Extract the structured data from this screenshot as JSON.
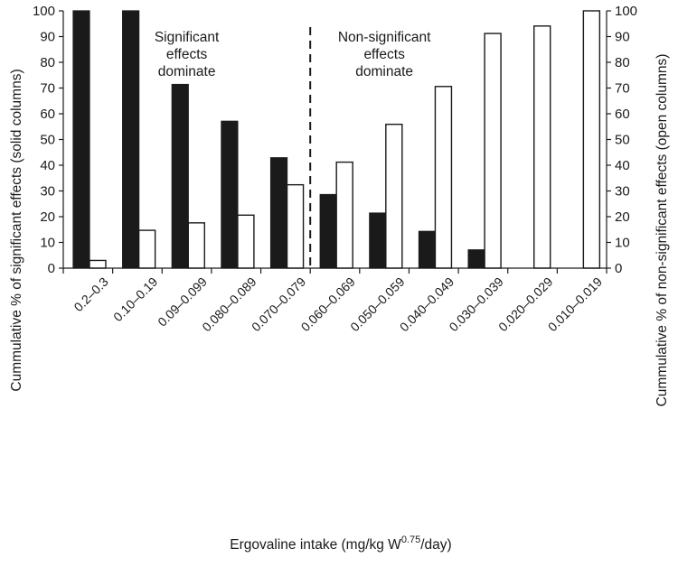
{
  "chart_data": {
    "type": "bar",
    "categories": [
      "0.2–0.3",
      "0.10–0.19",
      "0.09–0.099",
      "0.080–0.089",
      "0.070–0.079",
      "0.060–0.069",
      "0.050–0.059",
      "0.040–0.049",
      "0.030–0.039",
      "0.020–0.029",
      "0.010–0.019"
    ],
    "series": [
      {
        "key": "significant",
        "fill": "#1a1a1a",
        "axis": "left",
        "values": [
          100,
          100,
          71.4,
          57.1,
          42.9,
          28.6,
          21.4,
          14.3,
          7.1,
          0,
          0
        ]
      },
      {
        "key": "non_significant",
        "fill": "#ffffff",
        "axis": "right",
        "values": [
          3,
          14.7,
          17.6,
          20.6,
          32.4,
          41.2,
          55.9,
          70.6,
          91.2,
          94.1,
          100
        ]
      }
    ],
    "ylim": [
      0,
      100
    ],
    "yticks": [
      0,
      10,
      20,
      30,
      40,
      50,
      60,
      70,
      80,
      90,
      100
    ],
    "xlabel": {
      "main": "Ergovaline intake (mg/kg W",
      "sup": "0.75",
      "tail": "/day)"
    },
    "ylabel_left": "Cummulative % of significant  effects (solid columns)",
    "ylabel_right": "Cummulative % of non-significant  effects (open columns)",
    "divider": {
      "after_category_index": 4,
      "style": "dashed"
    },
    "annotations": [
      {
        "lines": [
          "Significant",
          "effects",
          "dominate"
        ],
        "category_center": 2.5,
        "y_value": 88
      },
      {
        "lines": [
          "Non-significant",
          "effects",
          "dominate"
        ],
        "category_center": 6.5,
        "y_value": 88
      }
    ],
    "grid": false,
    "legend": "none"
  }
}
